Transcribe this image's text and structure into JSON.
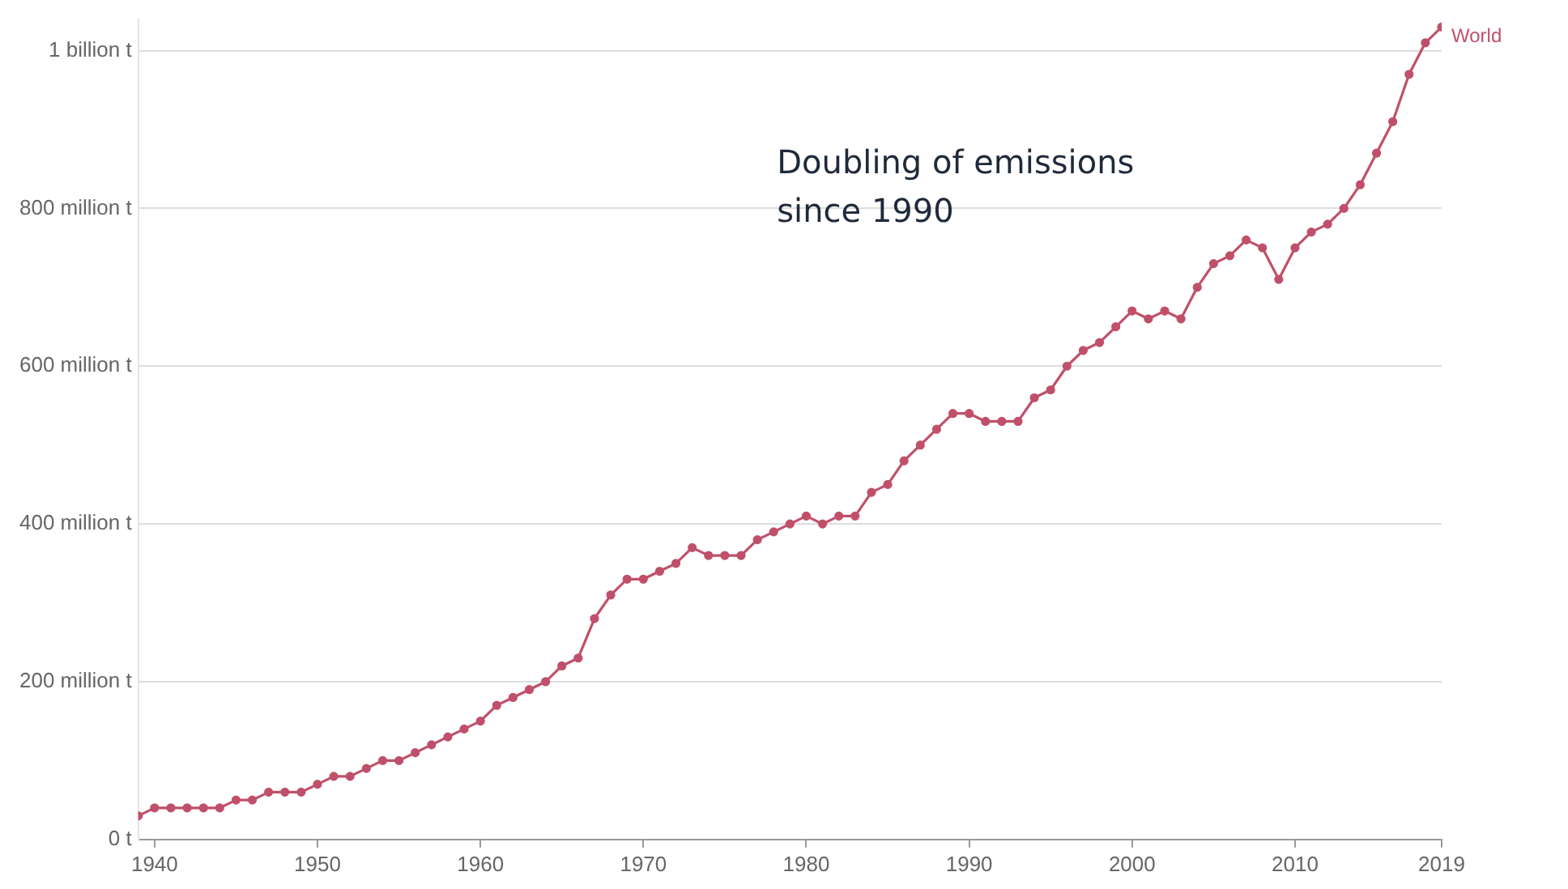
{
  "chart_data": {
    "type": "line",
    "x": [
      1939,
      1940,
      1941,
      1942,
      1943,
      1944,
      1945,
      1946,
      1947,
      1948,
      1949,
      1950,
      1951,
      1952,
      1953,
      1954,
      1955,
      1956,
      1957,
      1958,
      1959,
      1960,
      1961,
      1962,
      1963,
      1964,
      1965,
      1966,
      1967,
      1968,
      1969,
      1970,
      1971,
      1972,
      1973,
      1974,
      1975,
      1976,
      1977,
      1978,
      1979,
      1980,
      1981,
      1982,
      1983,
      1984,
      1985,
      1986,
      1987,
      1988,
      1989,
      1990,
      1991,
      1992,
      1993,
      1994,
      1995,
      1996,
      1997,
      1998,
      1999,
      2000,
      2001,
      2002,
      2003,
      2004,
      2005,
      2006,
      2007,
      2008,
      2009,
      2010,
      2011,
      2012,
      2013,
      2014,
      2015,
      2016,
      2017,
      2018,
      2019
    ],
    "series": [
      {
        "name": "World",
        "color": "#c0506a",
        "values": [
          30000000,
          40000000,
          40000000,
          40000000,
          40000000,
          40000000,
          50000000,
          50000000,
          60000000,
          60000000,
          60000000,
          70000000,
          80000000,
          80000000,
          90000000,
          100000000,
          100000000,
          110000000,
          120000000,
          130000000,
          140000000,
          150000000,
          170000000,
          180000000,
          190000000,
          200000000,
          220000000,
          230000000,
          280000000,
          310000000,
          330000000,
          330000000,
          340000000,
          350000000,
          370000000,
          360000000,
          360000000,
          360000000,
          380000000,
          390000000,
          400000000,
          410000000,
          400000000,
          410000000,
          410000000,
          440000000,
          450000000,
          480000000,
          500000000,
          520000000,
          540000000,
          540000000,
          530000000,
          530000000,
          530000000,
          560000000,
          570000000,
          600000000,
          620000000,
          630000000,
          650000000,
          670000000,
          660000000,
          670000000,
          660000000,
          700000000,
          730000000,
          740000000,
          760000000,
          750000000,
          710000000,
          750000000,
          770000000,
          780000000,
          800000000,
          830000000,
          870000000,
          910000000,
          970000000,
          1010000000,
          1030000000
        ]
      }
    ],
    "xlim": [
      1939,
      2019
    ],
    "xticks": [
      1940,
      1950,
      1960,
      1970,
      1980,
      1990,
      2000,
      2010,
      2019
    ],
    "ylim": [
      0,
      1040000000
    ],
    "yticks": [
      {
        "value": 0,
        "label": "0 t"
      },
      {
        "value": 200000000,
        "label": "200 million t"
      },
      {
        "value": 400000000,
        "label": "400 million t"
      },
      {
        "value": 600000000,
        "label": "600 million t"
      },
      {
        "value": 800000000,
        "label": "800 million t"
      },
      {
        "value": 1000000000,
        "label": "1 billion t"
      }
    ],
    "grid": "y",
    "legend": false,
    "marker": "circle",
    "line_style": "solid",
    "annotations": [
      "Doubling of emissions\nsince 1990"
    ]
  }
}
